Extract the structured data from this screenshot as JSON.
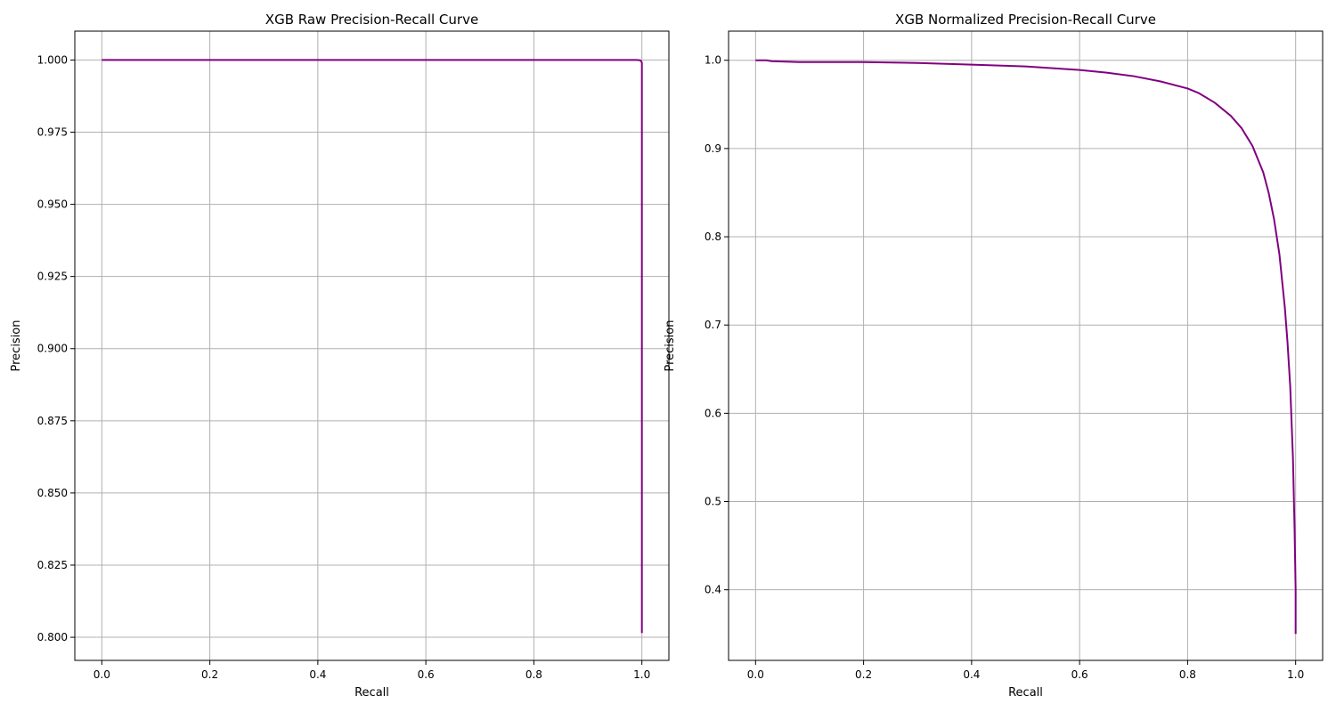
{
  "chart_data": [
    {
      "type": "line",
      "title": "XGB Raw Precision-Recall Curve",
      "xlabel": "Recall",
      "ylabel": "Precision",
      "xlim": [
        -0.05,
        1.05
      ],
      "ylim": [
        0.792,
        1.01
      ],
      "xticks": [
        0.0,
        0.2,
        0.4,
        0.6,
        0.8,
        1.0
      ],
      "xtick_labels": [
        "0.0",
        "0.2",
        "0.4",
        "0.6",
        "0.8",
        "1.0"
      ],
      "yticks": [
        0.8,
        0.825,
        0.85,
        0.875,
        0.9,
        0.925,
        0.95,
        0.975,
        1.0
      ],
      "ytick_labels": [
        "0.800",
        "0.825",
        "0.850",
        "0.875",
        "0.900",
        "0.925",
        "0.950",
        "0.975",
        "1.000"
      ],
      "grid": true,
      "color": "#800080",
      "series": [
        {
          "x": [
            0.0,
            0.2,
            0.4,
            0.6,
            0.8,
            0.95,
            0.99,
            0.997,
            0.999,
            1.0,
            1.0
          ],
          "y": [
            1.0,
            1.0,
            1.0,
            1.0,
            1.0,
            1.0,
            1.0,
            0.9999,
            0.9995,
            0.999,
            0.8015
          ]
        }
      ]
    },
    {
      "type": "line",
      "title": "XGB Normalized Precision-Recall Curve",
      "xlabel": "Recall",
      "ylabel": "Precision",
      "xlim": [
        -0.05,
        1.05
      ],
      "ylim": [
        0.32,
        1.033
      ],
      "xticks": [
        0.0,
        0.2,
        0.4,
        0.6,
        0.8,
        1.0
      ],
      "xtick_labels": [
        "0.0",
        "0.2",
        "0.4",
        "0.6",
        "0.8",
        "1.0"
      ],
      "yticks": [
        0.4,
        0.5,
        0.6,
        0.7,
        0.8,
        0.9,
        1.0
      ],
      "ytick_labels": [
        "0.4",
        "0.5",
        "0.6",
        "0.7",
        "0.8",
        "0.9",
        "1.0"
      ],
      "grid": true,
      "color": "#800080",
      "series": [
        {
          "x": [
            0.0,
            0.02,
            0.03,
            0.08,
            0.15,
            0.2,
            0.3,
            0.4,
            0.5,
            0.55,
            0.6,
            0.65,
            0.7,
            0.75,
            0.8,
            0.82,
            0.85,
            0.88,
            0.9,
            0.92,
            0.94,
            0.95,
            0.96,
            0.97,
            0.98,
            0.985,
            0.99,
            0.995,
            0.998,
            1.0,
            1.0
          ],
          "y": [
            1.0,
            1.0,
            0.999,
            0.998,
            0.998,
            0.998,
            0.997,
            0.995,
            0.993,
            0.991,
            0.989,
            0.986,
            0.982,
            0.976,
            0.968,
            0.963,
            0.952,
            0.937,
            0.923,
            0.903,
            0.873,
            0.85,
            0.82,
            0.78,
            0.72,
            0.68,
            0.63,
            0.55,
            0.47,
            0.4,
            0.35
          ]
        }
      ]
    }
  ]
}
